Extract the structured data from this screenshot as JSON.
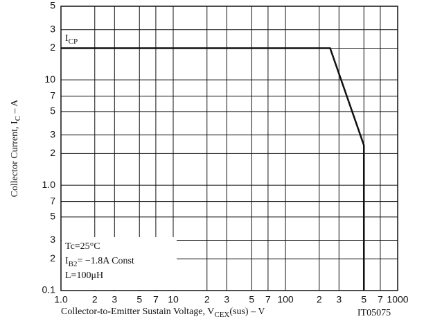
{
  "chart_data": {
    "type": "line",
    "y_label": [
      "Collector Current, I",
      "C",
      " – A"
    ],
    "x_label": [
      "Collector-to-Emitter Sustain Voltage, V",
      "CEX",
      "(sus)  –  V"
    ],
    "code": "IT05075",
    "curve_label": [
      "I",
      "CP"
    ],
    "conditions": [
      [
        "Tc=25°C"
      ],
      [
        "I",
        "B2",
        "= −1.8A Const"
      ],
      [
        "L=100μH"
      ]
    ],
    "log_x": true,
    "log_y": true,
    "grid": true,
    "xlim": [
      1,
      1000
    ],
    "ylim": [
      0.1,
      50
    ],
    "xticks": [
      {
        "value": 1,
        "label": "1.0"
      },
      2,
      3,
      5,
      7,
      10,
      {
        "value": 20,
        "label": "2"
      },
      {
        "value": 30,
        "label": "3"
      },
      {
        "value": 50,
        "label": "5"
      },
      {
        "value": 70,
        "label": "7"
      },
      100,
      {
        "value": 200,
        "label": "2"
      },
      {
        "value": 300,
        "label": "3"
      },
      {
        "value": 500,
        "label": "5"
      },
      {
        "value": 700,
        "label": "7"
      },
      1000
    ],
    "yticks": [
      0.1,
      {
        "value": 0.2,
        "label": "2"
      },
      {
        "value": 0.3,
        "label": "3"
      },
      {
        "value": 0.5,
        "label": "5"
      },
      {
        "value": 0.7,
        "label": "7"
      },
      {
        "value": 1,
        "label": "1.0"
      },
      2,
      3,
      5,
      7,
      10,
      {
        "value": 20,
        "label": "2"
      },
      {
        "value": 30,
        "label": "3"
      },
      {
        "value": 50,
        "label": "5"
      }
    ],
    "series": [
      {
        "name": "ICP",
        "color": "#111111",
        "x": [
          1,
          250,
          500,
          500
        ],
        "values": [
          20,
          20,
          2.4,
          0.1
        ]
      }
    ]
  }
}
